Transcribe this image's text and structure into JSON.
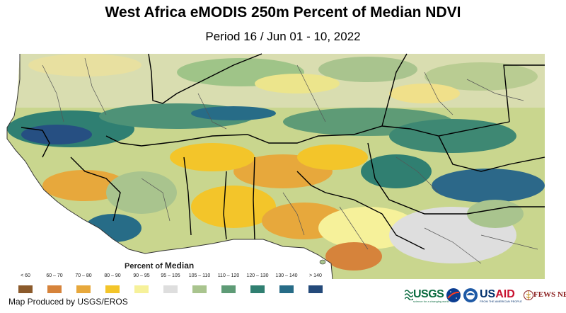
{
  "title": "West Africa eMODIS 250m Percent of Median NDVI",
  "subtitle": "Period 16 / Jun 01 - 10, 2022",
  "legend": {
    "title_part1": "Percent of ",
    "title_part2": "Median",
    "classes": [
      {
        "label": "< 60",
        "color": "#8b5a2b"
      },
      {
        "label": "60 – 70",
        "color": "#d6833b"
      },
      {
        "label": "70 – 80",
        "color": "#e7a83c"
      },
      {
        "label": "80 – 90",
        "color": "#f3c52a"
      },
      {
        "label": "90 – 95",
        "color": "#f6f19a"
      },
      {
        "label": "95 – 105",
        "color": "#dedede"
      },
      {
        "label": "105 – 110",
        "color": "#a9c48e"
      },
      {
        "label": "110 – 120",
        "color": "#5e9b76"
      },
      {
        "label": "120 – 130",
        "color": "#307f71"
      },
      {
        "label": "130 – 140",
        "color": "#276c87"
      },
      {
        "label": "> 140",
        "color": "#244a7a"
      }
    ]
  },
  "credit": "Map Produced by USGS/EROS",
  "logos": {
    "usgs": "USGS",
    "usgs_tagline": "science for a changing world",
    "usaid_a": "US",
    "usaid_b": "AID",
    "usaid_tagline": "FROM THE AMERICAN PEOPLE",
    "fews": "FEWS NET"
  },
  "colors": {
    "ocean": "#ffffff",
    "land_base": "#c9d68e",
    "borders_country": "#000000",
    "borders_admin": "#555555"
  }
}
